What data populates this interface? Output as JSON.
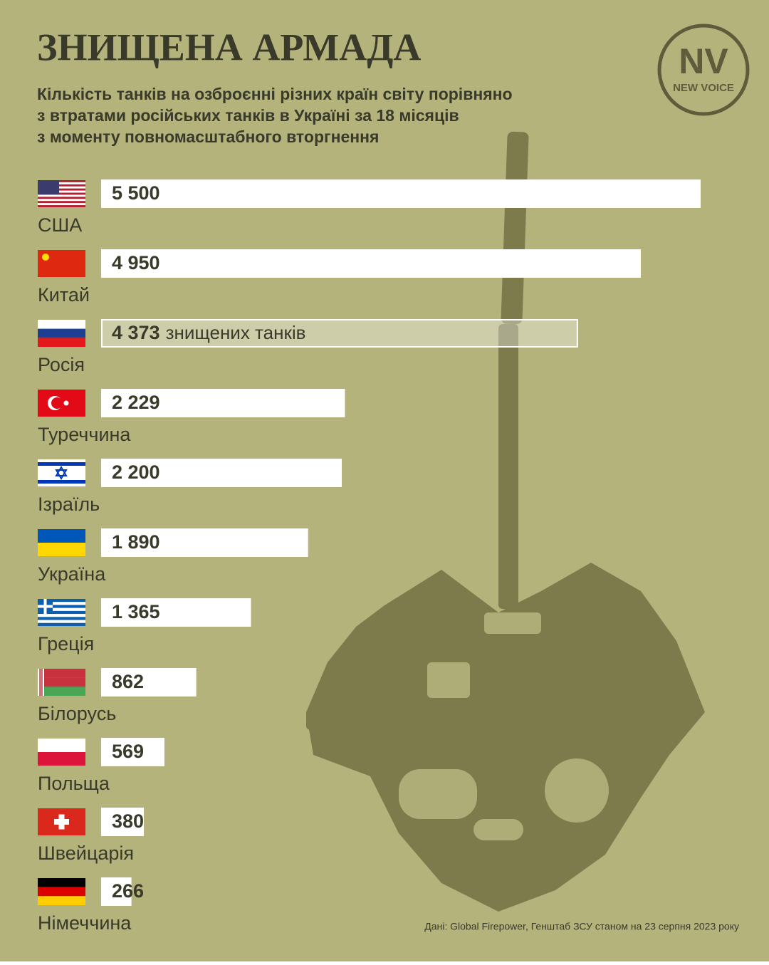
{
  "chart_data": {
    "type": "bar",
    "orientation": "horizontal",
    "title": "ЗНИЩЕНА АРМАДА",
    "subtitle": [
      "Кількість танків на озброєнні різних країн світу порівняно",
      "з втратами російських танків в Україні за 18 місяців",
      "з моменту повномасштабного вторгнення"
    ],
    "categories": [
      "США",
      "Китай",
      "Росія",
      "Туреччина",
      "Ізраїль",
      "Україна",
      "Греція",
      "Білорусь",
      "Польща",
      "Швейцарія",
      "Німеччина"
    ],
    "values": [
      5500,
      4950,
      4373,
      2229,
      2200,
      1890,
      1365,
      862,
      569,
      380,
      266
    ],
    "value_labels": [
      "5 500",
      "4 950",
      "4 373",
      "2 229",
      "2 200",
      "1 890",
      "1 365",
      "862",
      "569",
      "380",
      "266"
    ],
    "colors": [
      "#ffffff",
      "#ffffff",
      "rgba(255,255,255,0.35)",
      "#ffffff",
      "#ffffff",
      "#ffffff",
      "#ffffff",
      "#ffffff",
      "#ffffff",
      "#ffffff",
      "#ffffff"
    ],
    "annotation": "знищених танків",
    "source": "Дані: Global Firepower, Генштаб ЗСУ станом на 23 серпня 2023 року"
  },
  "logo": {
    "mark": "NV",
    "name": "NEW VOICE"
  }
}
